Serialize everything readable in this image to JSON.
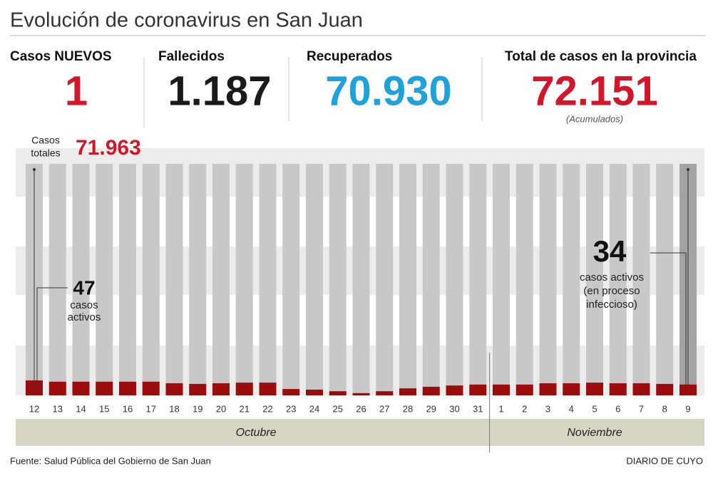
{
  "title": "Evolución de coronavirus en San Juan",
  "stats": [
    {
      "label": "Casos NUEVOS",
      "value": "1",
      "color": "#d3172b"
    },
    {
      "label": "Fallecidos",
      "value": "1.187",
      "color": "#1a1a1a"
    },
    {
      "label": "Recuperados",
      "value": "70.930",
      "color": "#1ea2dc"
    },
    {
      "label": "Total de casos en la provincia",
      "value": "72.151",
      "note": "(Acumulados)",
      "color": "#d3172b"
    }
  ],
  "chart_data": {
    "type": "bar",
    "categories": [
      "12",
      "13",
      "14",
      "15",
      "16",
      "17",
      "18",
      "19",
      "20",
      "21",
      "22",
      "23",
      "24",
      "25",
      "26",
      "27",
      "28",
      "29",
      "30",
      "31",
      "1",
      "2",
      "3",
      "4",
      "5",
      "6",
      "7",
      "8",
      "9"
    ],
    "values": [
      47,
      43,
      43,
      43,
      43,
      43,
      38,
      36,
      38,
      40,
      40,
      20,
      18,
      13,
      7,
      13,
      22,
      27,
      31,
      34,
      34,
      34,
      38,
      38,
      40,
      38,
      38,
      36,
      34
    ],
    "color": "#9b0d0d",
    "months": [
      "Octubre",
      "Noviembre"
    ],
    "first_total": {
      "value": 71963,
      "label": "71.963"
    },
    "first_total_caption": [
      "Casos",
      "totales"
    ],
    "first_caption": [
      "casos",
      "activos"
    ],
    "last_caption": [
      "casos activos",
      "(en proceso",
      "infeccioso)"
    ]
  },
  "footer": {
    "source": "Fuente: Salud Pública del Gobierno de San Juan",
    "brand": "DIARIO DE CUYO"
  }
}
